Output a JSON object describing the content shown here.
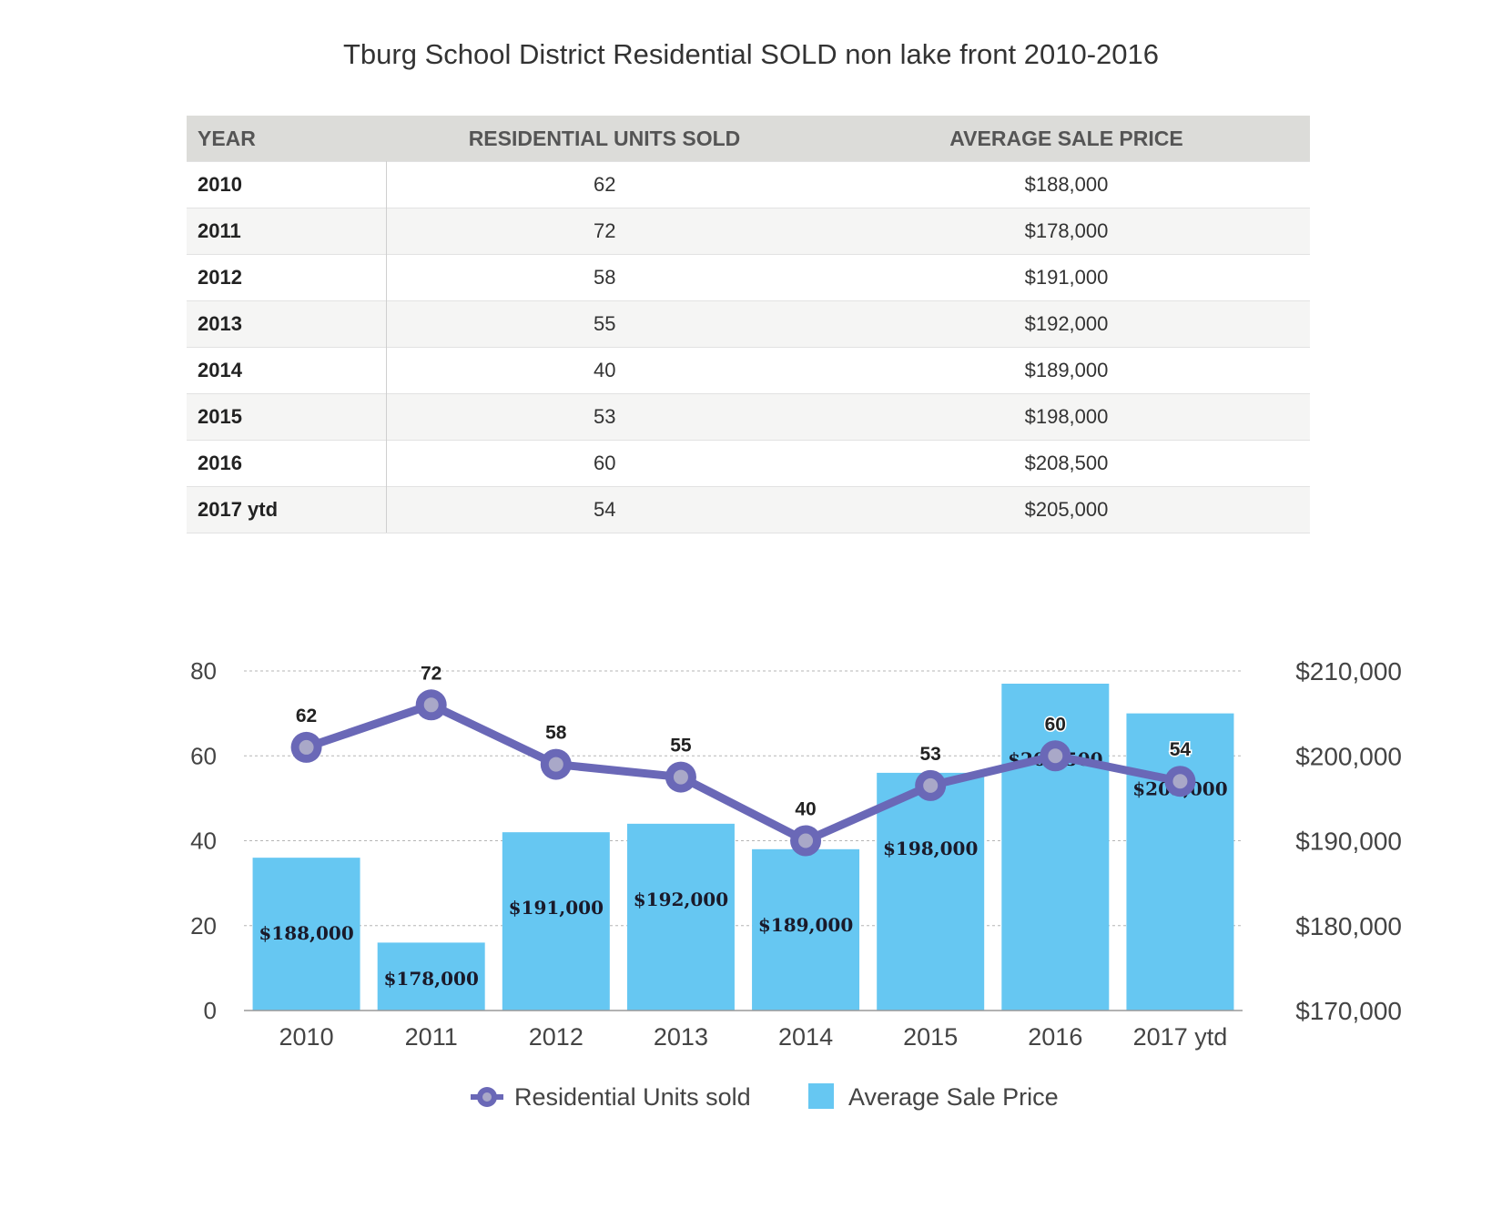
{
  "title": "Tburg School District Residential SOLD non lake front  2010-2016",
  "table": {
    "headers": [
      "YEAR",
      "RESIDENTIAL UNITS SOLD",
      "AVERAGE SALE PRICE"
    ],
    "rows": [
      [
        "2010",
        "62",
        "$188,000"
      ],
      [
        "2011",
        "72",
        "$178,000"
      ],
      [
        "2012",
        "58",
        "$191,000"
      ],
      [
        "2013",
        "55",
        "$192,000"
      ],
      [
        "2014",
        "40",
        "$189,000"
      ],
      [
        "2015",
        "53",
        "$198,000"
      ],
      [
        "2016",
        "60",
        "$208,500"
      ],
      [
        "2017  ytd",
        "54",
        "$205,000"
      ]
    ]
  },
  "chart_data": {
    "type": "bar",
    "categories": [
      "2010",
      "2011",
      "2012",
      "2013",
      "2014",
      "2015",
      "2016",
      "2017  ytd"
    ],
    "series": [
      {
        "name": "Average Sale Price",
        "type": "bar",
        "axis": "right",
        "values": [
          188000,
          178000,
          191000,
          192000,
          189000,
          198000,
          208500,
          205000
        ],
        "labels": [
          "$188,000",
          "$178,000",
          "$191,000",
          "$192,000",
          "$189,000",
          "$198,000",
          "$208,500",
          "$205,000"
        ],
        "color": "#66c7f2"
      },
      {
        "name": "Residential Units sold",
        "type": "line",
        "axis": "left",
        "values": [
          62,
          72,
          58,
          55,
          40,
          53,
          60,
          54
        ],
        "labels": [
          "62",
          "72",
          "58",
          "55",
          "40",
          "53",
          "60",
          "54"
        ],
        "color": "#6a68b7"
      }
    ],
    "y_left": {
      "ylim": [
        0,
        80
      ],
      "ticks": [
        "0",
        "20",
        "40",
        "60",
        "80"
      ]
    },
    "y_right": {
      "ylim": [
        170000,
        210000
      ],
      "ticks": [
        "$170,000",
        "$180,000",
        "$190,000",
        "$200,000",
        "$210,000"
      ]
    },
    "grid": true,
    "legend": "bottom-center"
  }
}
